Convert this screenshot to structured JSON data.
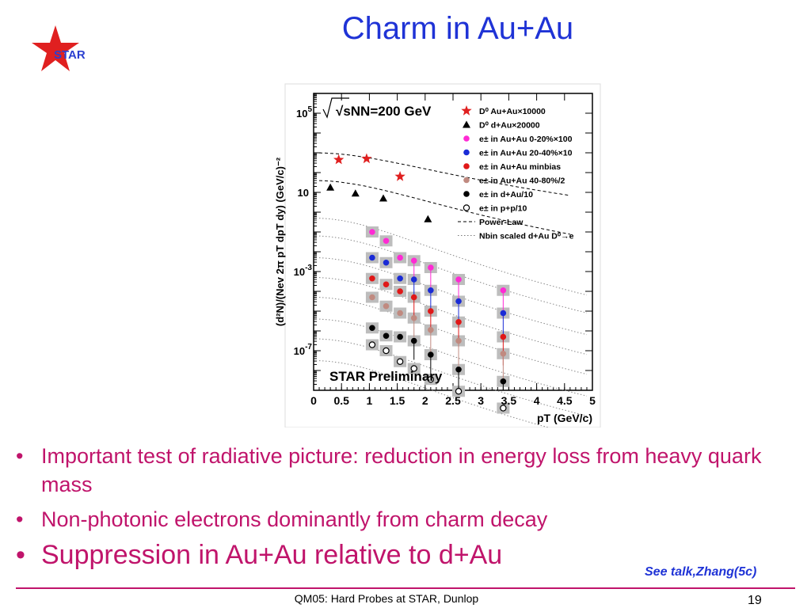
{
  "slide": {
    "title": "Charm in Au+Au",
    "logo_text": "STAR",
    "bullets": [
      "Important test of radiative picture: reduction in energy loss from heavy quark mass",
      "Non-photonic electrons dominantly from charm decay",
      "Suppression in Au+Au relative to d+Au"
    ],
    "note": "See talk,Zhang(5c)",
    "footer": "QM05: Hard Probes at STAR, Dunlop",
    "page_number": "19",
    "colors": {
      "title": "#1f33d6",
      "bullets": "#c0146b",
      "star_red": "#e02020",
      "logo_blue": "#2a3fd0"
    }
  },
  "chart_data": {
    "type": "scatter",
    "title": "√sNN=200 GeV",
    "watermark": "STAR Preliminary",
    "xlabel": "pT (GeV/c)",
    "ylabel": "(d²N)/(Nev 2π pT dpT dy) (GeV/c)⁻²",
    "xlim": [
      0,
      5
    ],
    "ylim": [
      -9,
      6
    ],
    "yscale": "log10",
    "xticks": [
      "0",
      "0.5",
      "1",
      "1.5",
      "2",
      "2.5",
      "3",
      "3.5",
      "4",
      "4.5",
      "5"
    ],
    "yticks": [
      {
        "exp": 5,
        "label": "10",
        "sup": "5"
      },
      {
        "exp": 1,
        "label": "10",
        "sup": ""
      },
      {
        "exp": -3,
        "label": "10",
        "sup": "-3"
      },
      {
        "exp": -7,
        "label": "10",
        "sup": "-7"
      }
    ],
    "legend_position": "top-right",
    "series": [
      {
        "name": "D⁰ Au+Au×10000",
        "marker": "star",
        "color": "#e02020",
        "x": [
          0.45,
          0.95,
          1.55
        ],
        "log10y": [
          2.65,
          2.7,
          1.8
        ]
      },
      {
        "name": "D⁰ d+Au×20000",
        "marker": "triangle",
        "color": "#000000",
        "x": [
          0.3,
          0.75,
          1.25,
          2.05
        ],
        "log10y": [
          1.25,
          0.95,
          0.7,
          -0.35
        ]
      },
      {
        "name": "e± in Au+Au 0-20%×100",
        "marker": "circle",
        "color": "#ff2ad4",
        "x": [
          1.05,
          1.3,
          1.55,
          1.8,
          2.1,
          2.6,
          3.4
        ],
        "log10y": [
          -1.0,
          -1.45,
          -2.3,
          -2.45,
          -2.8,
          -3.4,
          -3.95
        ]
      },
      {
        "name": "e± in Au+Au 20-40%×10",
        "marker": "circle",
        "color": "#1a2bd6",
        "x": [
          1.05,
          1.3,
          1.55,
          1.8,
          2.1,
          2.6,
          3.4
        ],
        "log10y": [
          -2.3,
          -2.55,
          -3.35,
          -3.4,
          -3.95,
          -4.5,
          -5.1
        ]
      },
      {
        "name": "e± in Au+Au minbias",
        "marker": "circle",
        "color": "#e01818",
        "x": [
          1.05,
          1.3,
          1.55,
          1.8,
          2.1,
          2.6,
          3.4
        ],
        "log10y": [
          -3.35,
          -3.65,
          -4.0,
          -4.3,
          -5.0,
          -5.55,
          -6.3
        ]
      },
      {
        "name": "e± in Au+Au 40-80%/2",
        "marker": "circle",
        "color": "#c08a80",
        "x": [
          1.05,
          1.3,
          1.55,
          1.8,
          2.1,
          2.6,
          3.4
        ],
        "log10y": [
          -4.3,
          -4.75,
          -5.1,
          -5.35,
          -5.95,
          -6.5,
          -7.15
        ]
      },
      {
        "name": "e± in d+Au/10",
        "marker": "circle",
        "color": "#000000",
        "x": [
          1.05,
          1.3,
          1.55,
          1.8,
          2.1,
          2.6,
          3.4
        ],
        "log10y": [
          -5.85,
          -6.25,
          -6.3,
          -6.5,
          -7.2,
          -7.95,
          -8.55
        ]
      },
      {
        "name": "e± in p+p/10",
        "marker": "open-circle",
        "color": "#000000",
        "x": [
          1.05,
          1.3,
          1.55,
          1.8,
          2.1,
          2.6,
          3.4
        ],
        "log10y": [
          -6.7,
          -7.0,
          -7.55,
          -7.9,
          -8.45,
          -9.05,
          -9.9
        ]
      },
      {
        "name": "Power-Law",
        "marker": "dashed-line",
        "color": "#000000"
      },
      {
        "name": "Nbin scaled d+Au D⁰→e",
        "marker": "dotted-line",
        "color": "#777777"
      }
    ]
  }
}
